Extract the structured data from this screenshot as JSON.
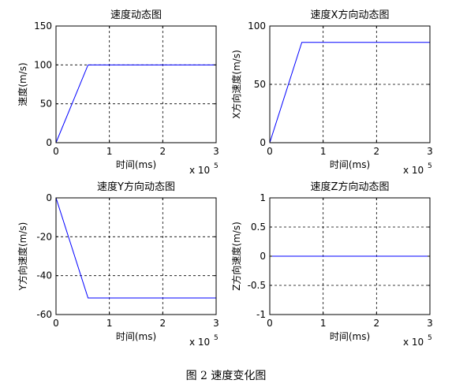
{
  "figure": {
    "caption": "图 2  速度变化图"
  },
  "chart_data": [
    {
      "type": "line",
      "title": "速度动态图",
      "xlabel": "时间(ms)",
      "ylabel": "速度(m/s)",
      "x_multiplier": "x 10",
      "x_multiplier_exp": "5",
      "xlim": [
        0,
        3
      ],
      "ylim": [
        0,
        150
      ],
      "xticks": [
        0,
        1,
        2,
        3
      ],
      "yticks": [
        0,
        50,
        100,
        150
      ],
      "grid": true,
      "series": [
        {
          "x": [
            0,
            0.6,
            3
          ],
          "y": [
            0,
            100,
            100
          ],
          "color": "#0000ff"
        }
      ]
    },
    {
      "type": "line",
      "title": "速度X方向动态图",
      "xlabel": "时间(ms)",
      "ylabel": "X方向速度(m/s)",
      "x_multiplier": "x 10",
      "x_multiplier_exp": "5",
      "xlim": [
        0,
        3
      ],
      "ylim": [
        0,
        100
      ],
      "xticks": [
        0,
        1,
        2,
        3
      ],
      "yticks": [
        0,
        50,
        100
      ],
      "grid": true,
      "series": [
        {
          "x": [
            0,
            0.6,
            3
          ],
          "y": [
            0,
            86,
            86
          ],
          "color": "#0000ff"
        }
      ]
    },
    {
      "type": "line",
      "title": "速度Y方向动态图",
      "xlabel": "时间(ms)",
      "ylabel": "Y方向速度(m/s)",
      "x_multiplier": "x 10",
      "x_multiplier_exp": "5",
      "xlim": [
        0,
        3
      ],
      "ylim": [
        -60,
        0
      ],
      "xticks": [
        0,
        1,
        2,
        3
      ],
      "yticks": [
        -60,
        -40,
        -20,
        0
      ],
      "grid": true,
      "series": [
        {
          "x": [
            0,
            0.6,
            3
          ],
          "y": [
            0,
            -51.5,
            -51.5
          ],
          "color": "#0000ff"
        }
      ]
    },
    {
      "type": "line",
      "title": "速度Z方向动态图",
      "xlabel": "时间(ms)",
      "ylabel": "Z方向速度(m/s)",
      "x_multiplier": "x 10",
      "x_multiplier_exp": "5",
      "xlim": [
        0,
        3
      ],
      "ylim": [
        -1,
        1
      ],
      "xticks": [
        0,
        1,
        2,
        3
      ],
      "yticks": [
        -1,
        -0.5,
        0,
        0.5,
        1
      ],
      "grid": true,
      "series": [
        {
          "x": [
            0,
            3
          ],
          "y": [
            0,
            0
          ],
          "color": "#0000ff"
        }
      ]
    }
  ]
}
